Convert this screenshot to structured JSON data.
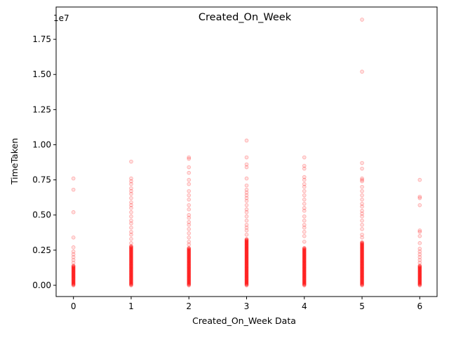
{
  "chart_data": {
    "type": "scatter",
    "title": "Created_On_Week",
    "xlabel": "Created_On_Week Data",
    "ylabel": "TimeTaken",
    "y_offset_label": "1e7",
    "xlim": [
      -0.3,
      6.3
    ],
    "ylim": [
      -0.08,
      1.98
    ],
    "y_units_note": "values shown in units of 1e7",
    "x_ticks": [
      0,
      1,
      2,
      3,
      4,
      5,
      6
    ],
    "x_tick_labels": [
      "0",
      "1",
      "2",
      "3",
      "4",
      "5",
      "6"
    ],
    "y_ticks": [
      0.0,
      0.25,
      0.5,
      0.75,
      1.0,
      1.25,
      1.5,
      1.75
    ],
    "y_tick_labels": [
      "0.00",
      "0.25",
      "0.50",
      "0.75",
      "1.00",
      "1.25",
      "1.50",
      "1.75"
    ],
    "marker_color": "#ff0000",
    "grid": false,
    "legend": "none",
    "columns": [
      {
        "x": 0,
        "dense_top": 0.14,
        "y": [
          0.76,
          0.68,
          0.52,
          0.34,
          0.27,
          0.24,
          0.22,
          0.2,
          0.18,
          0.16
        ]
      },
      {
        "x": 1,
        "dense_top": 0.28,
        "y": [
          0.88,
          0.76,
          0.74,
          0.72,
          0.69,
          0.67,
          0.65,
          0.62,
          0.59,
          0.57,
          0.55,
          0.52,
          0.49,
          0.46,
          0.44,
          0.41,
          0.38,
          0.36,
          0.33,
          0.3
        ]
      },
      {
        "x": 2,
        "dense_top": 0.27,
        "y": [
          0.91,
          0.9,
          0.84,
          0.8,
          0.75,
          0.72,
          0.67,
          0.64,
          0.61,
          0.57,
          0.54,
          0.5,
          0.48,
          0.45,
          0.43,
          0.4,
          0.37,
          0.34,
          0.31,
          0.29
        ]
      },
      {
        "x": 3,
        "dense_top": 0.33,
        "y": [
          1.03,
          0.91,
          0.86,
          0.84,
          0.76,
          0.71,
          0.68,
          0.66,
          0.64,
          0.62,
          0.6,
          0.57,
          0.54,
          0.52,
          0.49,
          0.46,
          0.43,
          0.41,
          0.39,
          0.36
        ]
      },
      {
        "x": 4,
        "dense_top": 0.27,
        "y": [
          0.91,
          0.85,
          0.83,
          0.77,
          0.75,
          0.72,
          0.7,
          0.67,
          0.64,
          0.61,
          0.58,
          0.55,
          0.53,
          0.49,
          0.46,
          0.43,
          0.41,
          0.38,
          0.35,
          0.31
        ]
      },
      {
        "x": 5,
        "dense_top": 0.31,
        "y": [
          1.89,
          1.52,
          0.87,
          0.83,
          0.76,
          0.75,
          0.74,
          0.7,
          0.67,
          0.64,
          0.61,
          0.58,
          0.56,
          0.53,
          0.51,
          0.49,
          0.46,
          0.43,
          0.4,
          0.36,
          0.34
        ]
      },
      {
        "x": 6,
        "dense_top": 0.14,
        "y": [
          0.75,
          0.63,
          0.62,
          0.57,
          0.39,
          0.38,
          0.35,
          0.3,
          0.26,
          0.24,
          0.22,
          0.2,
          0.18,
          0.16
        ]
      }
    ]
  }
}
